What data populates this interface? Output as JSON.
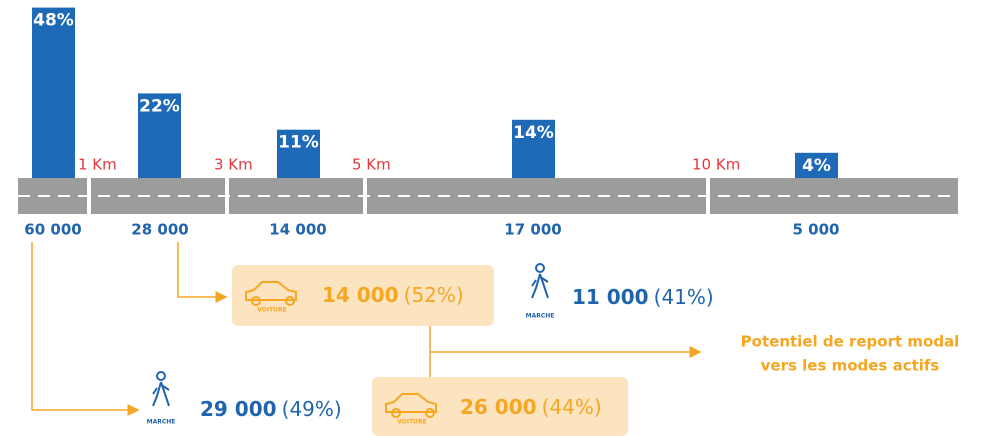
{
  "segments": [
    {
      "share": 48,
      "share_label": "48%",
      "count": "60 000"
    },
    {
      "share": 22,
      "share_label": "22%",
      "count": "28 000"
    },
    {
      "share": 11,
      "share_label": "11%",
      "count": "14 000"
    },
    {
      "share": 14,
      "share_label": "14%",
      "count": "17 000"
    },
    {
      "share": 4,
      "share_label": "4%",
      "count": "5 000"
    }
  ],
  "distances": [
    "1 Km",
    "3 Km",
    "5 Km",
    "10 Km"
  ],
  "flows": [
    {
      "mode": "VOITURE",
      "count": "14 000",
      "share": "(52%)"
    },
    {
      "mode": "MARCHE",
      "count": "11 000",
      "share": "(41%)"
    },
    {
      "mode": "MARCHE",
      "count": "29 000",
      "share": "(49%)"
    },
    {
      "mode": "VOITURE",
      "count": "26 000",
      "share": "(44%)"
    }
  ],
  "note": [
    "Potentiel de report modal",
    "vers les modes actifs"
  ]
}
